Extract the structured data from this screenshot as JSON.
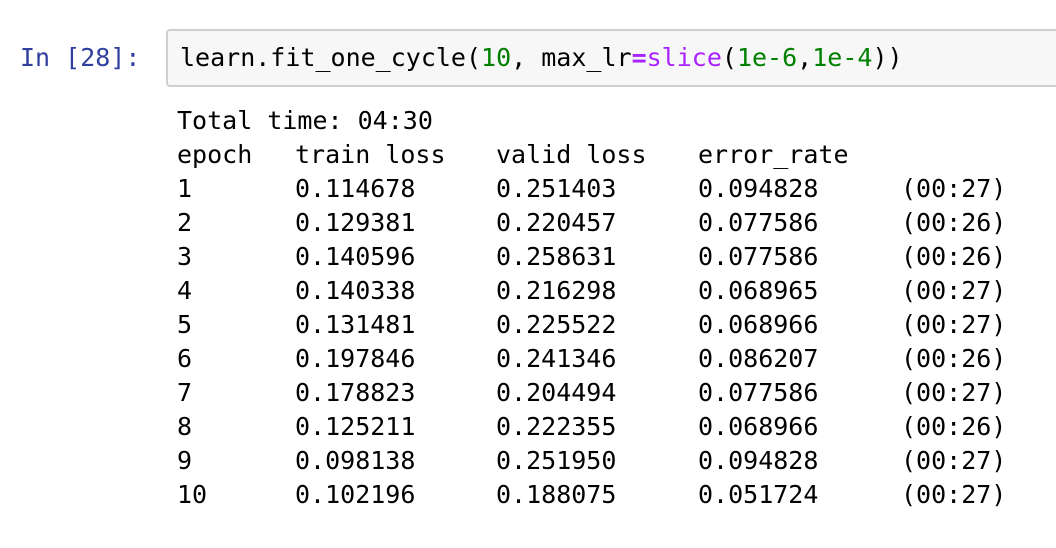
{
  "cell": {
    "prompt": "In [28]:",
    "code": {
      "fn": "learn.fit_one_cycle(",
      "arg1": "10",
      "sep1": ", max_lr",
      "eq": "=",
      "builtin": "slice",
      "paren_open": "(",
      "arg2": "1e-6",
      "comma": ",",
      "arg3": "1e-4",
      "paren_close": "))"
    }
  },
  "output": {
    "total_time": "Total time: 04:30",
    "headers": [
      "epoch",
      "train loss",
      "valid loss",
      "error_rate"
    ],
    "rows": [
      {
        "epoch": "1",
        "train_loss": "0.114678",
        "valid_loss": "0.251403",
        "error_rate": "0.094828",
        "time": "(00:27)"
      },
      {
        "epoch": "2",
        "train_loss": "0.129381",
        "valid_loss": "0.220457",
        "error_rate": "0.077586",
        "time": "(00:26)"
      },
      {
        "epoch": "3",
        "train_loss": "0.140596",
        "valid_loss": "0.258631",
        "error_rate": "0.077586",
        "time": "(00:26)"
      },
      {
        "epoch": "4",
        "train_loss": "0.140338",
        "valid_loss": "0.216298",
        "error_rate": "0.068965",
        "time": "(00:27)"
      },
      {
        "epoch": "5",
        "train_loss": "0.131481",
        "valid_loss": "0.225522",
        "error_rate": "0.068966",
        "time": "(00:27)"
      },
      {
        "epoch": "6",
        "train_loss": "0.197846",
        "valid_loss": "0.241346",
        "error_rate": "0.086207",
        "time": "(00:26)"
      },
      {
        "epoch": "7",
        "train_loss": "0.178823",
        "valid_loss": "0.204494",
        "error_rate": "0.077586",
        "time": "(00:27)"
      },
      {
        "epoch": "8",
        "train_loss": "0.125211",
        "valid_loss": "0.222355",
        "error_rate": "0.068966",
        "time": "(00:26)"
      },
      {
        "epoch": "9",
        "train_loss": "0.098138",
        "valid_loss": "0.251950",
        "error_rate": "0.094828",
        "time": "(00:27)"
      },
      {
        "epoch": "10",
        "train_loss": "0.102196",
        "valid_loss": "0.188075",
        "error_rate": "0.051724",
        "time": "(00:27)"
      }
    ]
  },
  "colors": {
    "prompt": "#303f9f",
    "number": "#008000",
    "operator": "#aa22ff",
    "input_bg": "#f7f7f7",
    "input_border": "#cfcfcf"
  }
}
